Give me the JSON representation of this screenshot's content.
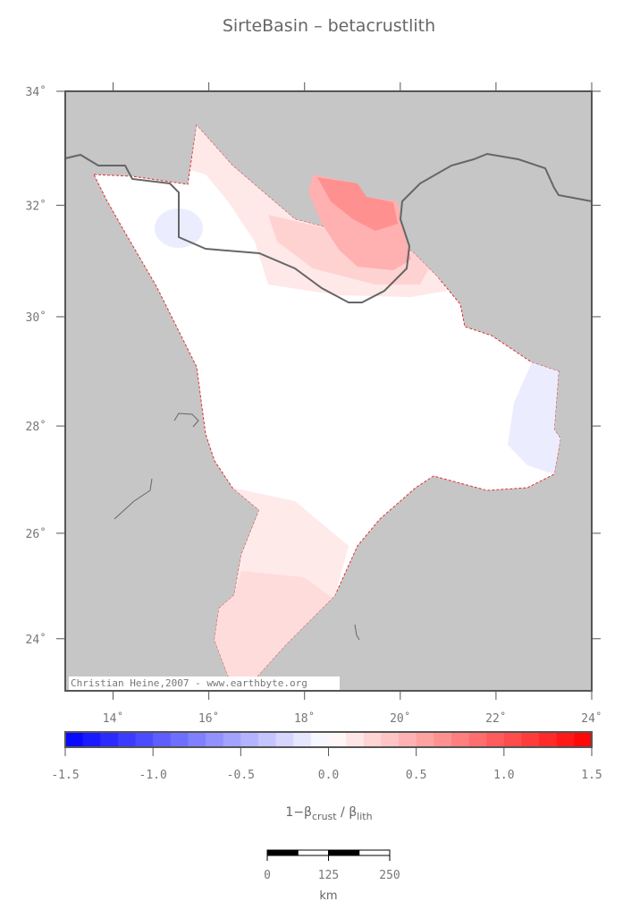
{
  "title": "SirteBasin – betacrustlith",
  "map": {
    "xlim": [
      13,
      24
    ],
    "ylim": [
      23,
      34
    ],
    "xticks": [
      {
        "value": 14,
        "label": "14˚"
      },
      {
        "value": 16,
        "label": "16˚"
      },
      {
        "value": 18,
        "label": "18˚"
      },
      {
        "value": 20,
        "label": "20˚"
      },
      {
        "value": 22,
        "label": "22˚"
      },
      {
        "value": 24,
        "label": "24˚"
      }
    ],
    "yticks": [
      {
        "value": 24,
        "label": "24˚"
      },
      {
        "value": 26,
        "label": "26˚"
      },
      {
        "value": 28,
        "label": "28˚"
      },
      {
        "value": 30,
        "label": "30˚"
      },
      {
        "value": 32,
        "label": "32˚"
      },
      {
        "value": 34,
        "label": "34˚"
      }
    ],
    "credit": "Christian Heine,2007 - www.earthbyte.org"
  },
  "colorbar": {
    "range": [
      -1.5,
      1.5
    ],
    "step": 0.1,
    "low_color": "#0000ff",
    "mid_color": "#ffffff",
    "high_color": "#ff0000",
    "ticks": [
      {
        "value": -1.5,
        "label": "-1.5"
      },
      {
        "value": -1.0,
        "label": "-1.0"
      },
      {
        "value": -0.5,
        "label": "-0.5"
      },
      {
        "value": 0,
        "label": "0.0"
      },
      {
        "value": 0.5,
        "label": "0.5"
      },
      {
        "value": 1.0,
        "label": "1.0"
      },
      {
        "value": 1.5,
        "label": "1.5"
      }
    ],
    "label": {
      "lead": "1−β",
      "sub1": "crust",
      "mid": " / β",
      "sub2": "lith"
    }
  },
  "scalebar": {
    "ticks": [
      0,
      125,
      250
    ],
    "unit": "km"
  }
}
